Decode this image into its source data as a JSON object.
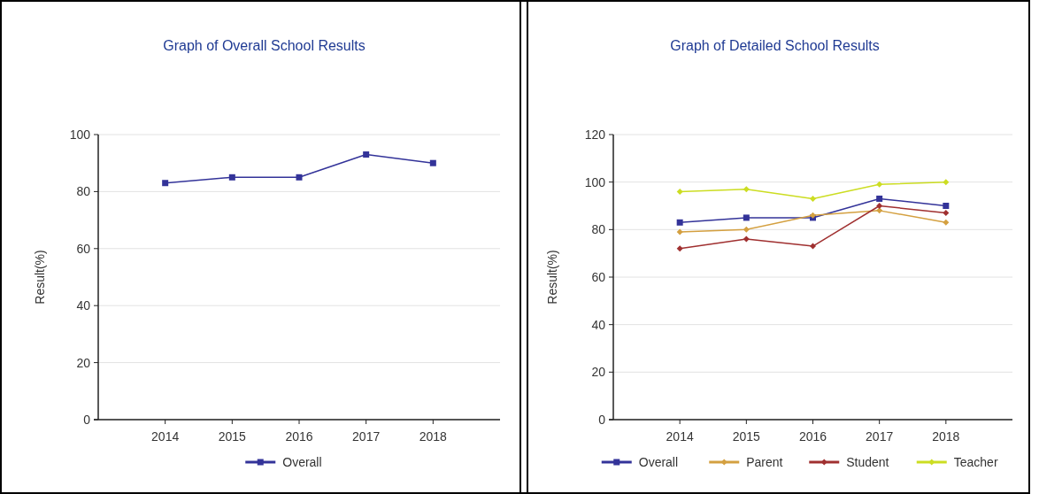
{
  "chart_data": [
    {
      "type": "line",
      "title": "Graph of Overall School Results",
      "ylabel": "Result(%)",
      "categories": [
        "2014",
        "2015",
        "2016",
        "2017",
        "2018"
      ],
      "series": [
        {
          "name": "Overall",
          "color": "#333399",
          "values": [
            83,
            85,
            85,
            93,
            90
          ],
          "marker": "square"
        }
      ],
      "ylim": [
        0,
        100
      ],
      "yticks": [
        0,
        20,
        40,
        60,
        80,
        100
      ],
      "grid": "y",
      "legend": "bottom"
    },
    {
      "type": "line",
      "title": "Graph of Detailed School Results",
      "ylabel": "Result(%)",
      "categories": [
        "2014",
        "2015",
        "2016",
        "2017",
        "2018"
      ],
      "series": [
        {
          "name": "Overall",
          "color": "#333399",
          "values": [
            83,
            85,
            85,
            93,
            90
          ],
          "marker": "square"
        },
        {
          "name": "Parent",
          "color": "#d4a040",
          "values": [
            79,
            80,
            86,
            88,
            83
          ],
          "marker": "diamond"
        },
        {
          "name": "Student",
          "color": "#a03030",
          "values": [
            72,
            76,
            73,
            90,
            87
          ],
          "marker": "diamond"
        },
        {
          "name": "Teacher",
          "color": "#ccdd22",
          "values": [
            96,
            97,
            93,
            99,
            100
          ],
          "marker": "diamond"
        }
      ],
      "ylim": [
        0,
        120
      ],
      "yticks": [
        0,
        20,
        40,
        60,
        80,
        100,
        120
      ],
      "grid": "y",
      "legend": "bottom"
    }
  ]
}
